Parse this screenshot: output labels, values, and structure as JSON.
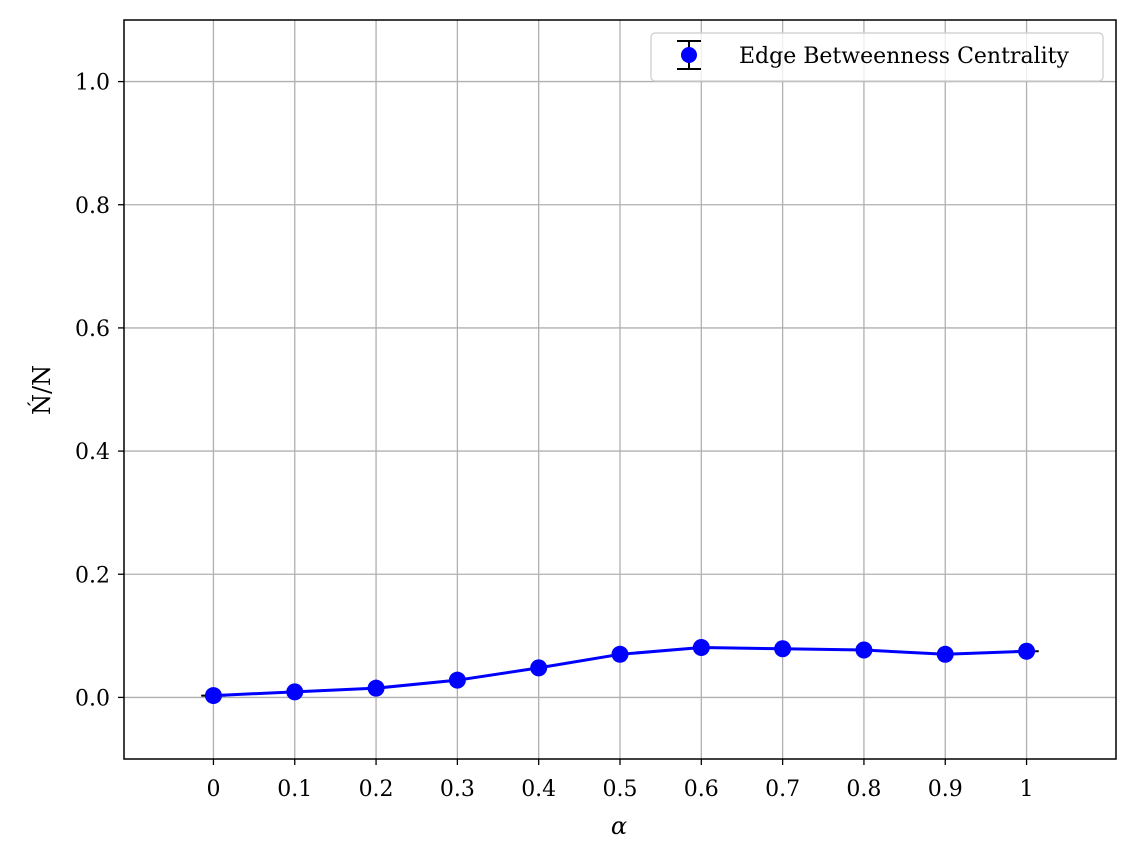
{
  "chart_data": {
    "type": "line",
    "xlabel": "α",
    "ylabel": "Ń/N",
    "x": [
      0,
      0.1,
      0.2,
      0.3,
      0.4,
      0.5,
      0.6,
      0.7,
      0.8,
      0.9,
      1.0
    ],
    "x_tick_labels": [
      "0",
      "0.1",
      "0.2",
      "0.3",
      "0.4",
      "0.5",
      "0.6",
      "0.7",
      "0.8",
      "0.9",
      "1"
    ],
    "y_ticks": [
      0.0,
      0.2,
      0.4,
      0.6,
      0.8,
      1.0
    ],
    "y_tick_labels": [
      "0.0",
      "0.2",
      "0.4",
      "0.6",
      "0.8",
      "1.0"
    ],
    "xlim": [
      -0.11,
      1.11
    ],
    "ylim": [
      -0.1,
      1.1
    ],
    "grid": true,
    "legend_position": "top-right",
    "series": [
      {
        "name": "Edge Betweenness Centrality",
        "values": [
          0.003,
          0.009,
          0.015,
          0.028,
          0.048,
          0.07,
          0.081,
          0.079,
          0.077,
          0.07,
          0.075
        ],
        "error": [
          0.0,
          0.0,
          0.0,
          0.0,
          0.0,
          0.0,
          0.0,
          0.0,
          0.0,
          0.0,
          0.0
        ],
        "x_error": [
          0.015,
          0.0,
          0.0,
          0.0,
          0.0,
          0.0,
          0.0,
          0.0,
          0.0,
          0.0,
          0.015
        ],
        "color": "#0000ff",
        "errorbar_color": "#000000"
      }
    ],
    "grid_color": "#b0b0b0"
  }
}
